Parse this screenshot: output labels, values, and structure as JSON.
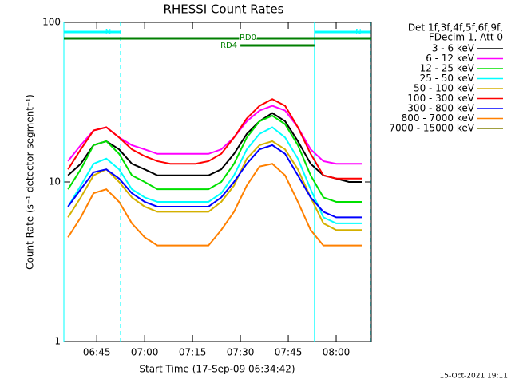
{
  "chart_data": {
    "type": "line",
    "title": "RHESSI Count Rates",
    "xlabel": "Start Time (17-Sep-09 06:34:42)",
    "ylabel": "Count Rate (s⁻¹ detector segment⁻¹)",
    "legend_title": [
      "Det 1f,3f,4f,5f,6f,9f,",
      "FDecim 1, Att 0"
    ],
    "footer": "15-Oct-2021 19:11",
    "log_y": true,
    "xlim": [
      "06:34:42",
      "08:11:00"
    ],
    "xticks": [
      "06:45",
      "07:00",
      "07:15",
      "07:30",
      "07:45",
      "08:00"
    ],
    "ylim": [
      1,
      100
    ],
    "yticks": [
      1,
      10,
      100
    ],
    "bands": [
      {
        "label": "N",
        "color": "#00ffff",
        "start": "06:34:42",
        "end": "06:52:27",
        "row": 0
      },
      {
        "label": "N",
        "color": "#00ffff",
        "start": "07:53:12",
        "end": "08:10:42",
        "row": 0
      },
      {
        "label": "RD0",
        "color": "#007f00",
        "start": "06:34:42",
        "end": "08:11:00",
        "row": 1
      },
      {
        "label": "RD4",
        "color": "#007f00",
        "start": "07:30:00",
        "end": "07:53:12",
        "row": 2
      }
    ],
    "x": [
      "06:36",
      "06:40",
      "06:44",
      "06:48",
      "06:52",
      "06:56",
      "07:00",
      "07:04",
      "07:08",
      "07:12",
      "07:16",
      "07:20",
      "07:24",
      "07:28",
      "07:32",
      "07:36",
      "07:40",
      "07:44",
      "07:48",
      "07:52",
      "07:56",
      "08:00",
      "08:04",
      "08:08"
    ],
    "series": [
      {
        "name": "3 - 6 keV",
        "color": "#000000",
        "values": [
          11,
          13,
          17,
          18,
          16,
          13,
          12,
          11,
          11,
          11,
          11,
          11,
          12,
          15,
          20,
          24,
          27,
          24,
          18,
          13,
          11,
          10.5,
          10,
          10
        ]
      },
      {
        "name": "6 - 12 keV",
        "color": "#ff00ff",
        "values": [
          13.5,
          17,
          21,
          22,
          19,
          17,
          16,
          15,
          15,
          15,
          15,
          15,
          16,
          19,
          24,
          28,
          30,
          28,
          22,
          16,
          13.5,
          13,
          13,
          13
        ]
      },
      {
        "name": "12 - 25 keV",
        "color": "#00e000",
        "values": [
          9,
          12,
          17,
          18,
          15,
          11,
          10,
          9,
          9,
          9,
          9,
          9,
          10,
          13,
          19,
          24,
          26,
          23,
          17,
          11,
          8,
          7.5,
          7.5,
          7.5
        ]
      },
      {
        "name": "25 - 50 keV",
        "color": "#00ffff",
        "values": [
          7,
          9.5,
          13,
          14,
          12,
          9,
          8,
          7.5,
          7.5,
          7.5,
          7.5,
          7.5,
          8.5,
          11,
          16,
          20,
          22,
          19,
          14,
          9,
          6,
          5.5,
          5.5,
          5.5
        ]
      },
      {
        "name": "50 - 100 keV",
        "color": "#d4b000",
        "values": [
          6,
          8,
          11,
          12,
          10,
          8,
          7,
          6.5,
          6.5,
          6.5,
          6.5,
          6.5,
          7.5,
          9.5,
          14,
          17,
          18,
          16,
          12,
          8,
          5.5,
          5,
          5,
          5
        ]
      },
      {
        "name": "100 - 300 keV",
        "color": "#ff0000",
        "values": [
          12,
          16,
          21,
          22,
          19,
          16,
          14.5,
          13.5,
          13,
          13,
          13,
          13.5,
          15,
          19,
          25,
          30,
          33,
          30,
          22,
          15,
          11,
          10.5,
          10.5,
          10.5
        ]
      },
      {
        "name": "300 - 800 keV",
        "color": "#0000ff",
        "values": [
          7,
          9,
          11.5,
          12,
          10.5,
          8.5,
          7.5,
          7,
          7,
          7,
          7,
          7,
          8,
          10,
          13,
          16,
          17,
          15,
          11,
          8,
          6.5,
          6,
          6,
          6
        ]
      },
      {
        "name": "800 - 7000 keV",
        "color": "#ff8000",
        "values": [
          4.5,
          6,
          8.5,
          9,
          7.5,
          5.5,
          4.5,
          4,
          4,
          4,
          4,
          4,
          5,
          6.5,
          9.5,
          12.5,
          13,
          11,
          7.5,
          5,
          4,
          4,
          4,
          4
        ]
      },
      {
        "name": "7000 - 15000 keV",
        "color": "#808000",
        "values": [
          null,
          null,
          null,
          null,
          null,
          null,
          null,
          null,
          null,
          null,
          null,
          null,
          null,
          null,
          null,
          null,
          null,
          null,
          null,
          null,
          null,
          null,
          null,
          null
        ]
      }
    ]
  }
}
